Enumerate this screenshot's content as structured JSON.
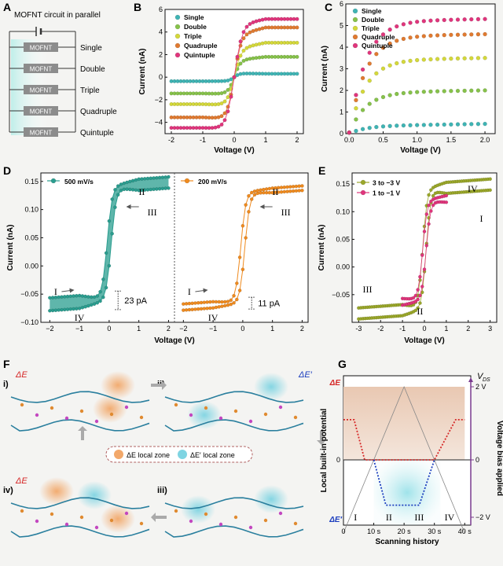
{
  "panels": {
    "A": {
      "letter": "A",
      "title": "MOFNT circuit in parallel",
      "element_label": "MOFNT",
      "rows": [
        "Single",
        "Double",
        "Triple",
        "Quadruple",
        "Quintuple"
      ]
    },
    "F": {
      "letter": "F",
      "steps": [
        "i)",
        "ii)",
        "iii)",
        "iv)"
      ],
      "legend_local_e": "ΔE local zone",
      "legend_local_e_prime": "ΔE′ local zone",
      "label_delta_e": "ΔE",
      "label_delta_e_prime": "ΔE′"
    }
  },
  "chart_data": [
    {
      "id": "B",
      "letter": "B",
      "type": "scatter",
      "xlabel": "Voltage (V)",
      "ylabel": "Current (nA)",
      "xlim": [
        -2.2,
        2.2
      ],
      "ylim": [
        -5,
        6
      ],
      "xticks": [
        -2,
        -1,
        0,
        1,
        2
      ],
      "yticks": [
        -4,
        -2,
        0,
        2,
        4,
        6
      ],
      "legend_position": "top-left",
      "series": [
        {
          "name": "Single",
          "color": "#3fb4b4",
          "amplitude": 0.35,
          "offset": -0.05,
          "k": 6
        },
        {
          "name": "Double",
          "color": "#86c24a",
          "amplitude": 1.5,
          "offset": 0.3,
          "k": 5
        },
        {
          "name": "Triple",
          "color": "#d4d83a",
          "amplitude": 2.5,
          "offset": 0.55,
          "k": 4.5
        },
        {
          "name": "Quadruple",
          "color": "#e07a30",
          "amplitude": 3.7,
          "offset": 0.7,
          "k": 4.5
        },
        {
          "name": "Quintuple",
          "color": "#e0357c",
          "amplitude": 4.6,
          "offset": 0.55,
          "k": 4
        }
      ]
    },
    {
      "id": "C",
      "letter": "C",
      "type": "scatter",
      "xlabel": "Voltage (V)",
      "ylabel": "Current (nA)",
      "xlim": [
        -0.05,
        2.15
      ],
      "ylim": [
        0,
        6
      ],
      "xticks": [
        0.0,
        0.5,
        1.0,
        1.5,
        2.0
      ],
      "yticks": [
        0,
        1,
        2,
        3,
        4,
        5,
        6
      ],
      "legend_position": "top-left",
      "series": [
        {
          "name": "Single",
          "color": "#3fb4b4",
          "plateau": 0.35
        },
        {
          "name": "Double",
          "color": "#86c24a",
          "plateau": 1.9
        },
        {
          "name": "Triple",
          "color": "#d4d83a",
          "plateau": 3.4
        },
        {
          "name": "Quadruple",
          "color": "#e07a30",
          "plateau": 4.5
        },
        {
          "name": "Quintuple",
          "color": "#e0357c",
          "plateau": 5.2
        }
      ]
    },
    {
      "id": "D",
      "letter": "D",
      "type": "line",
      "xlabel": "Voltage (V)",
      "ylabel": "Current (nA)",
      "ylim": [
        -0.1,
        0.165
      ],
      "yticks": [
        -0.1,
        -0.05,
        0.0,
        0.05,
        0.1,
        0.15
      ],
      "subplots": [
        {
          "legend": "500 mV/s",
          "color": "#2a9d8f",
          "xlim": [
            -2.3,
            2.2
          ],
          "xticks": [
            -2,
            -1,
            0,
            1,
            2
          ],
          "upper": 0.14,
          "lower": -0.06,
          "gap_lo": 0.023,
          "gap_hi": 0.02,
          "labels": {
            "I": "I",
            "II": "II",
            "III": "III",
            "IV": "IV"
          },
          "gap_text": "23 pA"
        },
        {
          "legend": "200 mV/s",
          "color": "#ef8a1e",
          "xlim": [
            -2.3,
            2.2
          ],
          "xticks": [
            -2,
            -1,
            0,
            1,
            2
          ],
          "upper": 0.13,
          "lower": -0.065,
          "gap_lo": 0.011,
          "gap_hi": 0.008,
          "labels": {
            "I": "I",
            "II": "II",
            "III": "III",
            "IV": "IV"
          },
          "gap_text": "11 pA"
        }
      ]
    },
    {
      "id": "E",
      "letter": "E",
      "type": "line",
      "xlabel": "Voltage (V)",
      "ylabel": "Current (nA)",
      "xlim": [
        -3.3,
        3.3
      ],
      "ylim": [
        -0.1,
        0.17
      ],
      "xticks": [
        -3,
        -2,
        -1,
        0,
        1,
        2,
        3
      ],
      "yticks": [
        -0.05,
        0.0,
        0.05,
        0.1,
        0.15
      ],
      "legend_position": "top-left",
      "series": [
        {
          "name": "3 to −3 V",
          "color": "#9aa72a",
          "vmax": 3,
          "upper": 0.14,
          "lower": -0.075,
          "gap": 0.02
        },
        {
          "name": "1 to −1 V",
          "color": "#e0357c",
          "vmax": 1,
          "upper": 0.12,
          "lower": -0.06,
          "gap": 0.012
        }
      ],
      "labels": {
        "I": "I",
        "II": "II",
        "III": "III",
        "IV": "IV"
      }
    },
    {
      "id": "G",
      "letter": "G",
      "type": "line",
      "xlabel": "Scanning history",
      "ylabel": "Local built-in potential",
      "ylabel_right": "Voltage bias applied",
      "vds_label": "V",
      "vds_sub": "DS",
      "left_top": "ΔE",
      "left_bottom": "ΔE′",
      "left_zero": "0",
      "right_ticks": [
        "2 V",
        "0",
        "−2 V"
      ],
      "xticks": [
        "0",
        "10 s",
        "20 s",
        "30 s",
        "40 s"
      ],
      "xlim": [
        0,
        42
      ],
      "voltage_line": {
        "x": [
          0,
          20,
          40
        ],
        "y": [
          -2,
          2,
          -2
        ]
      },
      "potential_line": {
        "x": [
          0,
          3.5,
          7,
          14,
          30,
          37,
          40
        ],
        "y": [
          0.55,
          0.55,
          0,
          0,
          0,
          0.55,
          0.55
        ]
      },
      "potential_line_neg": {
        "x": [
          10,
          14,
          25,
          30
        ],
        "y": [
          0,
          -0.62,
          -0.62,
          0
        ]
      },
      "regions": [
        "I",
        "II",
        "III",
        "IV"
      ]
    }
  ]
}
